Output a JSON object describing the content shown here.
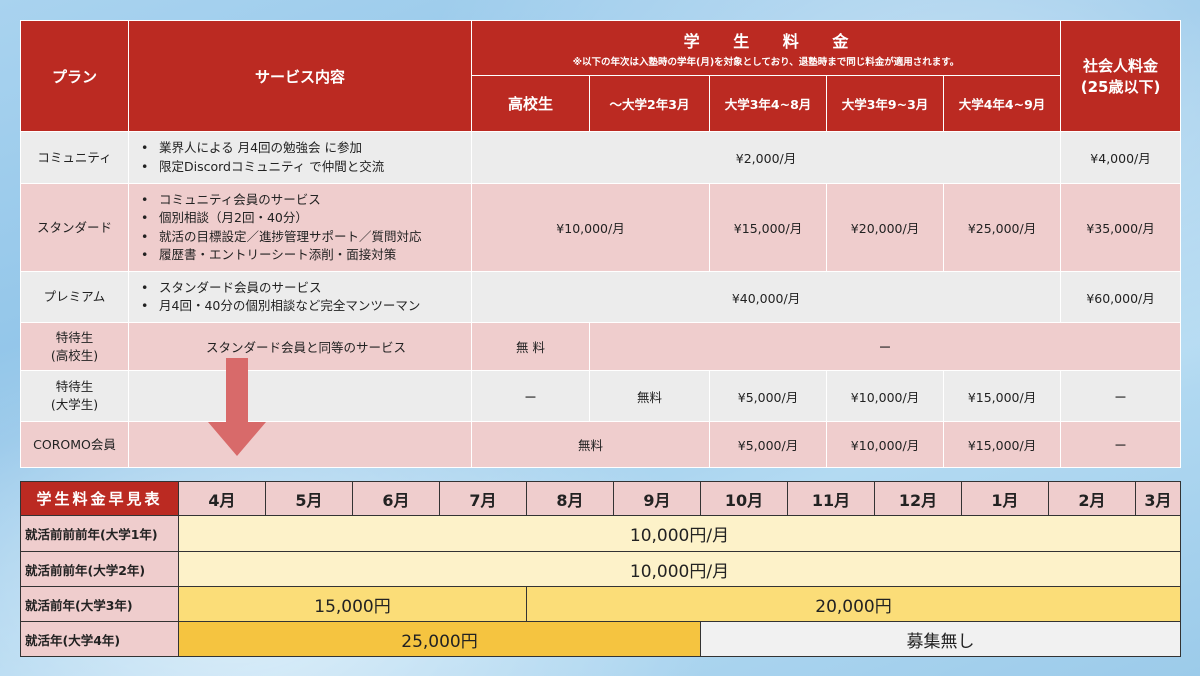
{
  "plan_table": {
    "headers": {
      "plan": "プラン",
      "service": "サービス内容",
      "student_fee": "学 生 料 金",
      "student_note": "※以下の年次は入塾時の学年(月)を対象としており、退塾時まで同じ料金が適用されます。",
      "adult_fee_line1": "社会人料金",
      "adult_fee_line2": "(25歳以下)",
      "sub": [
        "高校生",
        "〜大学2年3月",
        "大学3年4~8月",
        "大学3年9~3月",
        "大学4年4~9月"
      ]
    },
    "rows": {
      "community": {
        "plan": "コミュニティ",
        "services": [
          "業界人による 月4回の勉強会 に参加",
          "限定Discordコミュニティ で仲間と交流"
        ],
        "student_price": "¥2,000/月",
        "adult_price": "¥4,000/月"
      },
      "standard": {
        "plan": "スタンダード",
        "services": [
          "コミュニティ会員のサービス",
          "個別相談（月2回・40分）",
          "就活の目標設定／進捗管理サポート／質問対応",
          "履歴書・エントリーシート添削・面接対策"
        ],
        "price_hs_to_u2": "¥10,000/月",
        "price_u3_a": "¥15,000/月",
        "price_u3_b": "¥20,000/月",
        "price_u4": "¥25,000/月",
        "adult_price": "¥35,000/月"
      },
      "premium": {
        "plan": "プレミアム",
        "services": [
          "スタンダード会員のサービス",
          "月4回・40分の個別相談など完全マンツーマン"
        ],
        "student_price": "¥40,000/月",
        "adult_price": "¥60,000/月"
      },
      "special_hs": {
        "plan_line1": "特待生",
        "plan_line2": "(高校生)",
        "service": "スタンダード会員と同等のサービス",
        "price_hs": "無 料",
        "price_rest": "ー"
      },
      "special_univ": {
        "plan_line1": "特待生",
        "plan_line2": "(大学生)",
        "price_hs": "ー",
        "price_u2": "無料",
        "price_u3_a": "¥5,000/月",
        "price_u3_b": "¥10,000/月",
        "price_u4": "¥15,000/月",
        "adult_price": "ー"
      },
      "coromo": {
        "plan": "COROMO会員",
        "price_hs_to_u2": "無料",
        "price_u3_a": "¥5,000/月",
        "price_u3_b": "¥10,000/月",
        "price_u4": "¥15,000/月",
        "adult_price": "ー"
      }
    }
  },
  "arrow": {
    "color": "#d86a6a",
    "icon": "down-arrow-icon"
  },
  "fee_table": {
    "title": "学生料金早見表",
    "months": [
      "4月",
      "5月",
      "6月",
      "7月",
      "8月",
      "9月",
      "10月",
      "11月",
      "12月",
      "1月",
      "2月",
      "3月"
    ],
    "rows": [
      {
        "label": "就活前前前年(大学1年)",
        "segments": [
          {
            "text": "10,000円/月"
          }
        ]
      },
      {
        "label": "就活前前年(大学2年)",
        "segments": [
          {
            "text": "10,000円/月"
          }
        ]
      },
      {
        "label": "就活前年(大学3年)",
        "segments": [
          {
            "text": "15,000円"
          },
          {
            "text": "20,000円"
          }
        ]
      },
      {
        "label": "就活年(大学4年)",
        "segments": [
          {
            "text": "25,000円"
          },
          {
            "text": "募集無し"
          }
        ]
      }
    ]
  },
  "colors": {
    "header_red": "#bb2a22",
    "row_pink": "#efcdcd",
    "row_grey": "#ececec",
    "fee_light": "#fdf2c9",
    "fee_mid": "#fbdd78",
    "fee_dark": "#f5c440",
    "fee_none": "#f1f1f1"
  }
}
